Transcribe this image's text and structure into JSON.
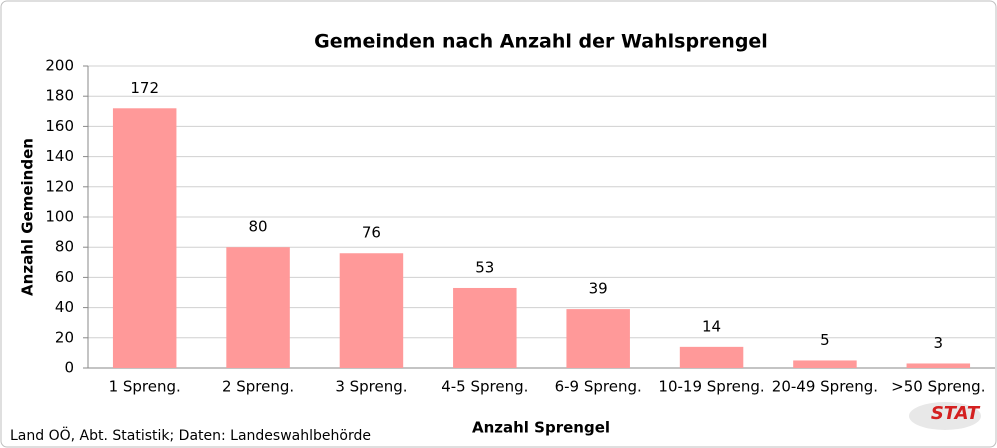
{
  "chart_data": {
    "type": "bar",
    "title": "Gemeinden nach Anzahl der Wahlsprengel",
    "x_label": "Anzahl Sprengel",
    "y_label": "Anzahl Gemeinden",
    "source": "Land OÖ, Abt. Statistik; Daten: Landeswahlbehörde",
    "logo": "STAT",
    "categories": [
      "1 Spreng.",
      "2 Spreng.",
      "3 Spreng.",
      "4-5 Spreng.",
      "6-9 Spreng.",
      "10-19 Spreng.",
      "20-49 Spreng.",
      ">50 Spreng."
    ],
    "values": [
      172,
      80,
      76,
      53,
      39,
      14,
      5,
      3
    ],
    "color": "#ff9999",
    "ylim": [
      0,
      200
    ],
    "yticks": [
      0,
      20,
      40,
      60,
      80,
      100,
      120,
      140,
      160,
      180,
      200
    ],
    "grid": true
  }
}
